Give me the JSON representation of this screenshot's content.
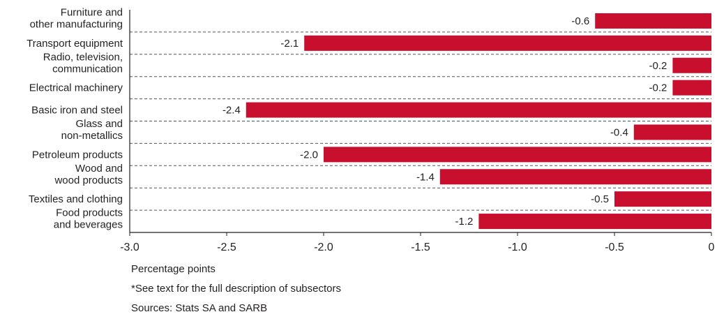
{
  "chart_data": {
    "type": "bar",
    "orientation": "horizontal",
    "categories": [
      [
        "Furniture and",
        "other manufacturing"
      ],
      [
        "Transport equipment"
      ],
      [
        "Radio, television,",
        "communication"
      ],
      [
        "Electrical machinery"
      ],
      [
        "Basic iron and steel"
      ],
      [
        "Glass and",
        "non-metallics"
      ],
      [
        "Petroleum products"
      ],
      [
        "Wood and",
        "wood products"
      ],
      [
        "Textiles and clothing"
      ],
      [
        "Food products",
        "and beverages"
      ]
    ],
    "values": [
      -0.6,
      -2.1,
      -0.2,
      -0.2,
      -2.4,
      -0.4,
      -2.0,
      -1.4,
      -0.5,
      -1.2
    ],
    "value_labels": [
      "-0.6",
      "-2.1",
      "-0.2",
      "-0.2",
      "-2.4",
      "-0.4",
      "-2.0",
      "-1.4",
      "-0.5",
      "-1.2"
    ],
    "xlim": [
      -3.0,
      0
    ],
    "xticks": [
      -3.0,
      -2.5,
      -2.0,
      -1.5,
      -1.0,
      -0.5,
      0
    ],
    "xtick_labels": [
      "-3.0",
      "-2.5",
      "-2.0",
      "-1.5",
      "-1.0",
      "-0.5",
      "0"
    ],
    "bar_color": "#c8102e",
    "grid": "dashed horizontal separators between categories"
  },
  "notes": {
    "xlabel": "Percentage points",
    "footnote": "*See text for the full description of subsectors",
    "sources": "Sources: Stats SA and SARB"
  }
}
